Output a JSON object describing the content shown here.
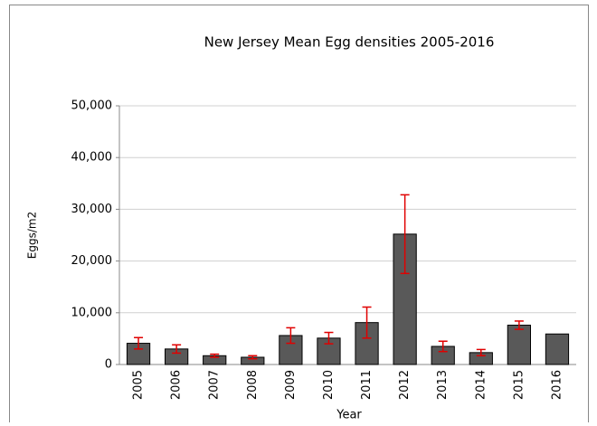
{
  "chart_data": {
    "type": "bar",
    "title": "New Jersey Mean Egg densities 2005-2016",
    "x_label": "Year",
    "y_label": "Eggs/m2",
    "categories": [
      "2005",
      "2006",
      "2007",
      "2008",
      "2009",
      "2010",
      "2011",
      "2012",
      "2013",
      "2014",
      "2015",
      "2016"
    ],
    "values": [
      4100,
      3000,
      1700,
      1400,
      5600,
      5100,
      8100,
      25200,
      3500,
      2300,
      7600,
      5900
    ],
    "errors": [
      1100,
      800,
      300,
      300,
      1500,
      1100,
      3000,
      7600,
      1000,
      600,
      800,
      null
    ],
    "color": "#595959",
    "error_color": "#e00000",
    "ylim": [
      0,
      50000
    ],
    "yticks": [
      0,
      {
        "value": 10000,
        "label": "10,000"
      },
      {
        "value": 20000,
        "label": "20,000"
      },
      {
        "value": 30000,
        "label": "30,000"
      },
      {
        "value": 40000,
        "label": "40,000"
      },
      {
        "value": 50000,
        "label": "50,000"
      }
    ],
    "grid": true
  }
}
